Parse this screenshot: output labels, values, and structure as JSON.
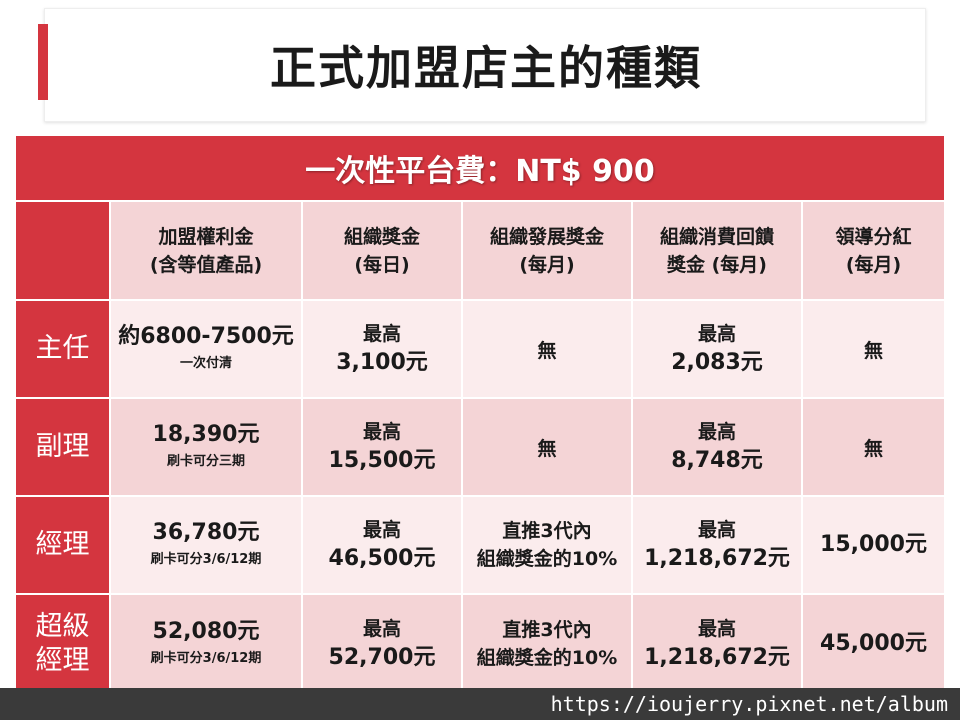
{
  "title": "正式加盟店主的種類",
  "banner": "一次性平台費：NT$ 900",
  "columns": [
    [
      "加盟權利金",
      "(含等值產品)"
    ],
    [
      "組織獎金",
      "(每日)"
    ],
    [
      "組織發展獎金",
      "(每月)"
    ],
    [
      "組織消費回饋",
      "獎金 (每月)"
    ],
    [
      "領導分紅",
      "(每月)"
    ]
  ],
  "rows": [
    {
      "name": [
        "主任"
      ],
      "cells": [
        [
          "約6800-7500元",
          "一次付清"
        ],
        [
          "最高",
          "3,100元"
        ],
        [
          "無"
        ],
        [
          "最高",
          "2,083元"
        ],
        [
          "無"
        ]
      ]
    },
    {
      "name": [
        "副理"
      ],
      "cells": [
        [
          "18,390元",
          "刷卡可分三期"
        ],
        [
          "最高",
          "15,500元"
        ],
        [
          "無"
        ],
        [
          "最高",
          "8,748元"
        ],
        [
          "無"
        ]
      ]
    },
    {
      "name": [
        "經理"
      ],
      "cells": [
        [
          "36,780元",
          "刷卡可分3/6/12期"
        ],
        [
          "最高",
          "46,500元"
        ],
        [
          "直推3代內",
          "組織獎金的10%"
        ],
        [
          "最高",
          "1,218,672元"
        ],
        [
          "15,000元"
        ]
      ]
    },
    {
      "name": [
        "超級",
        "經理"
      ],
      "cells": [
        [
          "52,080元",
          "刷卡可分3/6/12期"
        ],
        [
          "最高",
          "52,700元"
        ],
        [
          "直推3代內",
          "組織獎金的10%"
        ],
        [
          "最高",
          "1,218,672元"
        ],
        [
          "45,000元"
        ]
      ]
    }
  ],
  "watermark": "https://ioujerry.pixnet.net/album",
  "colors": {
    "accent": "#d4353f",
    "header_bg": "#f4d4d6",
    "cell_bg": "#fbeced"
  }
}
